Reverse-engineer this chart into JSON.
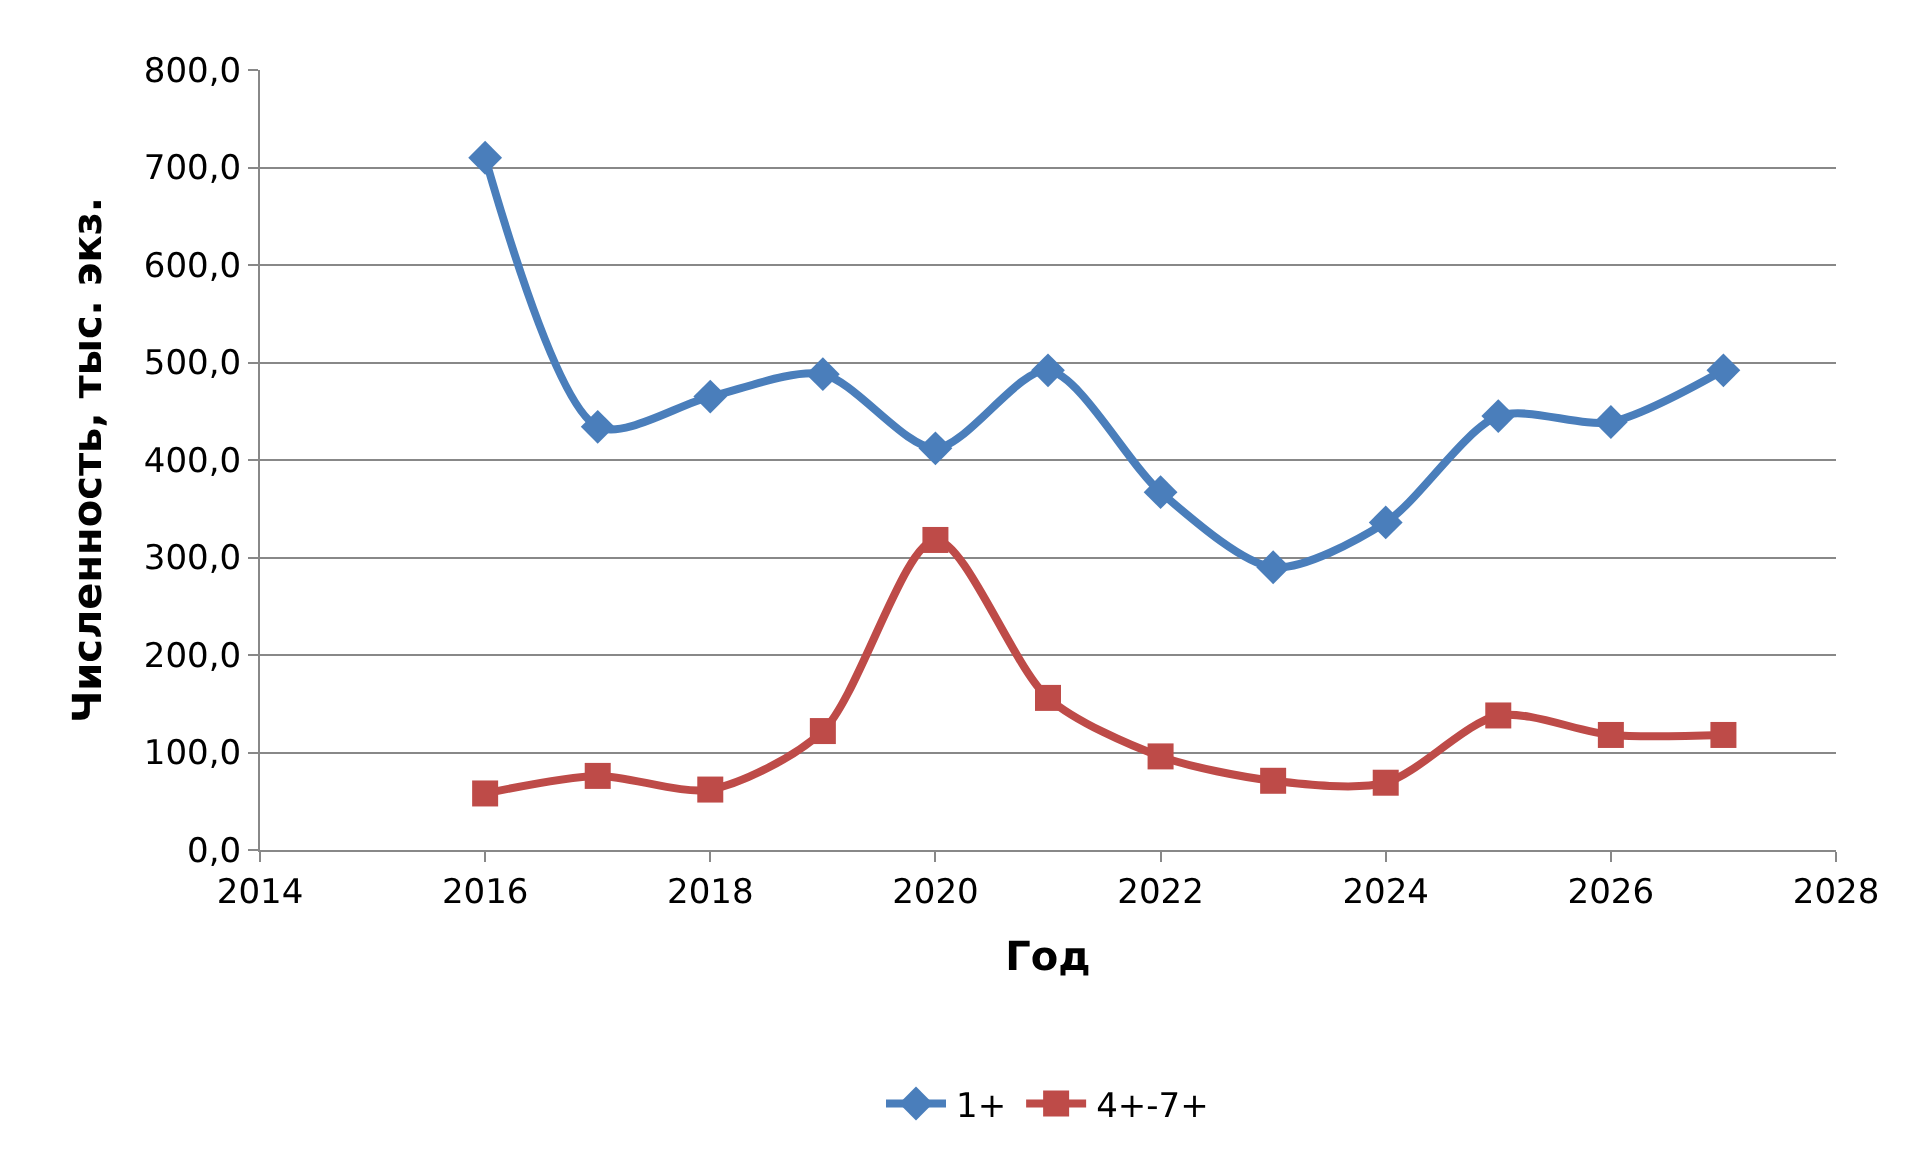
{
  "chart_data": {
    "type": "line",
    "xlabel": "Год",
    "ylabel": "Численность, тыс. экз.",
    "x": [
      2016,
      2017,
      2018,
      2019,
      2020,
      2021,
      2022,
      2023,
      2024,
      2025,
      2026,
      2027
    ],
    "series": [
      {
        "name": "1+",
        "color": "#4a7ebb",
        "marker": "diamond",
        "values": [
          710,
          434,
          465,
          488,
          412,
          492,
          367,
          290,
          336,
          445,
          439,
          492
        ]
      },
      {
        "name": "4+-7+",
        "color": "#be4b48",
        "marker": "square",
        "values": [
          58,
          76,
          62,
          122,
          318,
          156,
          96,
          71,
          69,
          138,
          118,
          118
        ]
      }
    ],
    "xlim": [
      2014,
      2028
    ],
    "xticks": [
      2014,
      2016,
      2018,
      2020,
      2022,
      2024,
      2026,
      2028
    ],
    "ylim": [
      0,
      800
    ],
    "yticks": [
      {
        "value": 0,
        "label": "0,0"
      },
      {
        "value": 100,
        "label": "100,0"
      },
      {
        "value": 200,
        "label": "200,0"
      },
      {
        "value": 300,
        "label": "300,0"
      },
      {
        "value": 400,
        "label": "400,0"
      },
      {
        "value": 500,
        "label": "500,0"
      },
      {
        "value": 600,
        "label": "600,0"
      },
      {
        "value": 700,
        "label": "700,0"
      },
      {
        "value": 800,
        "label": "800,0"
      }
    ],
    "grid": "y",
    "legend": "bottom",
    "line_style": "solid"
  }
}
